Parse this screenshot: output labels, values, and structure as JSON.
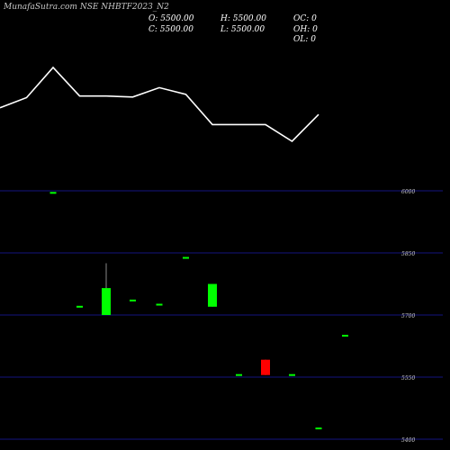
{
  "header": {
    "title": "MunafaSutra.com NSE NHBTF2023_N2",
    "open": "O: 5500.00",
    "high": "H: 5500.00",
    "oc": "OC: 0",
    "close": "C: 5500.00",
    "low": "L: 5500.00",
    "oh": "OH: 0",
    "ol": "OL: 0"
  },
  "colors": {
    "background": "#000000",
    "up": "#00ff00",
    "down": "#ff0000",
    "line": "#ffffff",
    "grid": "#1a1aaa",
    "text": "#c8c8c8"
  },
  "chart_data": [
    {
      "type": "line",
      "note_panel": "upper",
      "series": [
        {
          "values": [
            5440,
            5470,
            5560,
            5475,
            5475,
            5472,
            5500,
            5480,
            5390,
            5390,
            5390,
            5340,
            5420
          ]
        }
      ]
    },
    {
      "type": "candlestick",
      "y_ticks": [
        6000,
        5850,
        5700,
        5550,
        5400
      ],
      "ylim": [
        5400,
        6000
      ],
      "candles": [
        {
          "o": 5995,
          "h": 5995,
          "c": 5995,
          "l": 5995,
          "dir": "up"
        },
        {
          "o": 5720,
          "h": 5720,
          "c": 5720,
          "l": 5720,
          "dir": "up"
        },
        {
          "o": 5700,
          "h": 5825,
          "c": 5765,
          "l": 5700,
          "dir": "up"
        },
        {
          "o": 5735,
          "h": 5735,
          "c": 5735,
          "l": 5735,
          "dir": "up"
        },
        {
          "o": 5725,
          "h": 5725,
          "c": 5725,
          "l": 5725,
          "dir": "up"
        },
        {
          "o": 5838,
          "h": 5838,
          "c": 5838,
          "l": 5838,
          "dir": "up"
        },
        {
          "o": 5720,
          "h": 5775,
          "c": 5775,
          "l": 5720,
          "dir": "up"
        },
        {
          "o": 5555,
          "h": 5555,
          "c": 5555,
          "l": 5555,
          "dir": "up"
        },
        {
          "o": 5592,
          "h": 5592,
          "c": 5555,
          "l": 5555,
          "dir": "down"
        },
        {
          "o": 5555,
          "h": 5555,
          "c": 5555,
          "l": 5555,
          "dir": "up"
        },
        {
          "o": 5426,
          "h": 5426,
          "c": 5426,
          "l": 5426,
          "dir": "up"
        },
        {
          "o": 5650,
          "h": 5650,
          "c": 5650,
          "l": 5650,
          "dir": "up"
        }
      ]
    }
  ]
}
